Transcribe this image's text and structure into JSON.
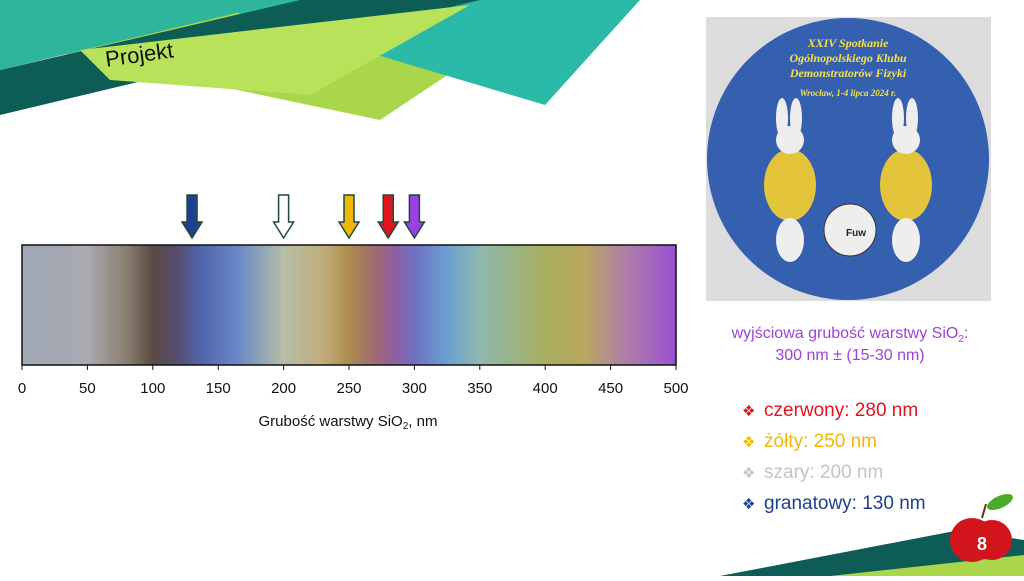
{
  "header": {
    "title": "Projekt"
  },
  "figure": {
    "axis": {
      "range": [
        0,
        500
      ],
      "ticks": [
        0,
        50,
        100,
        150,
        200,
        250,
        300,
        350,
        400,
        450,
        500
      ]
    },
    "xlabel": {
      "text": "Grubość warstwy SiO",
      "sub": "2",
      "tail": ", nm"
    },
    "markers": [
      {
        "value": 130,
        "color": "#1f3f8f"
      },
      {
        "value": 200,
        "color": "#ffffff"
      },
      {
        "value": 250,
        "color": "#f2b705"
      },
      {
        "value": 280,
        "color": "#e0141e"
      },
      {
        "value": 300,
        "color": "#9a3fe0"
      }
    ]
  },
  "logo": {
    "lines": [
      "XXIV Spotkanie",
      "Ogólnopolskiego Klubu",
      "Demonstratorów Fizyki"
    ],
    "date": "Wrocław, 1-4 lipca 2024 r.",
    "badge": "Fuw"
  },
  "note": {
    "text": "wyjściowa grubość warstwy SiO",
    "sub": "2",
    "tail": ":",
    "line2": "300 nm ± (15-30 nm)"
  },
  "list": {
    "bullet": "❖",
    "items": [
      {
        "text": "czerwony: 280 nm",
        "color": "#e0141e"
      },
      {
        "text": "żółty: 250 nm",
        "color": "#f2b705"
      },
      {
        "text": "szary: 200 nm",
        "color": "#c4c4c4"
      },
      {
        "text": "granatowy: 130 nm",
        "color": "#1f3f8f"
      }
    ]
  },
  "page_number": "8"
}
